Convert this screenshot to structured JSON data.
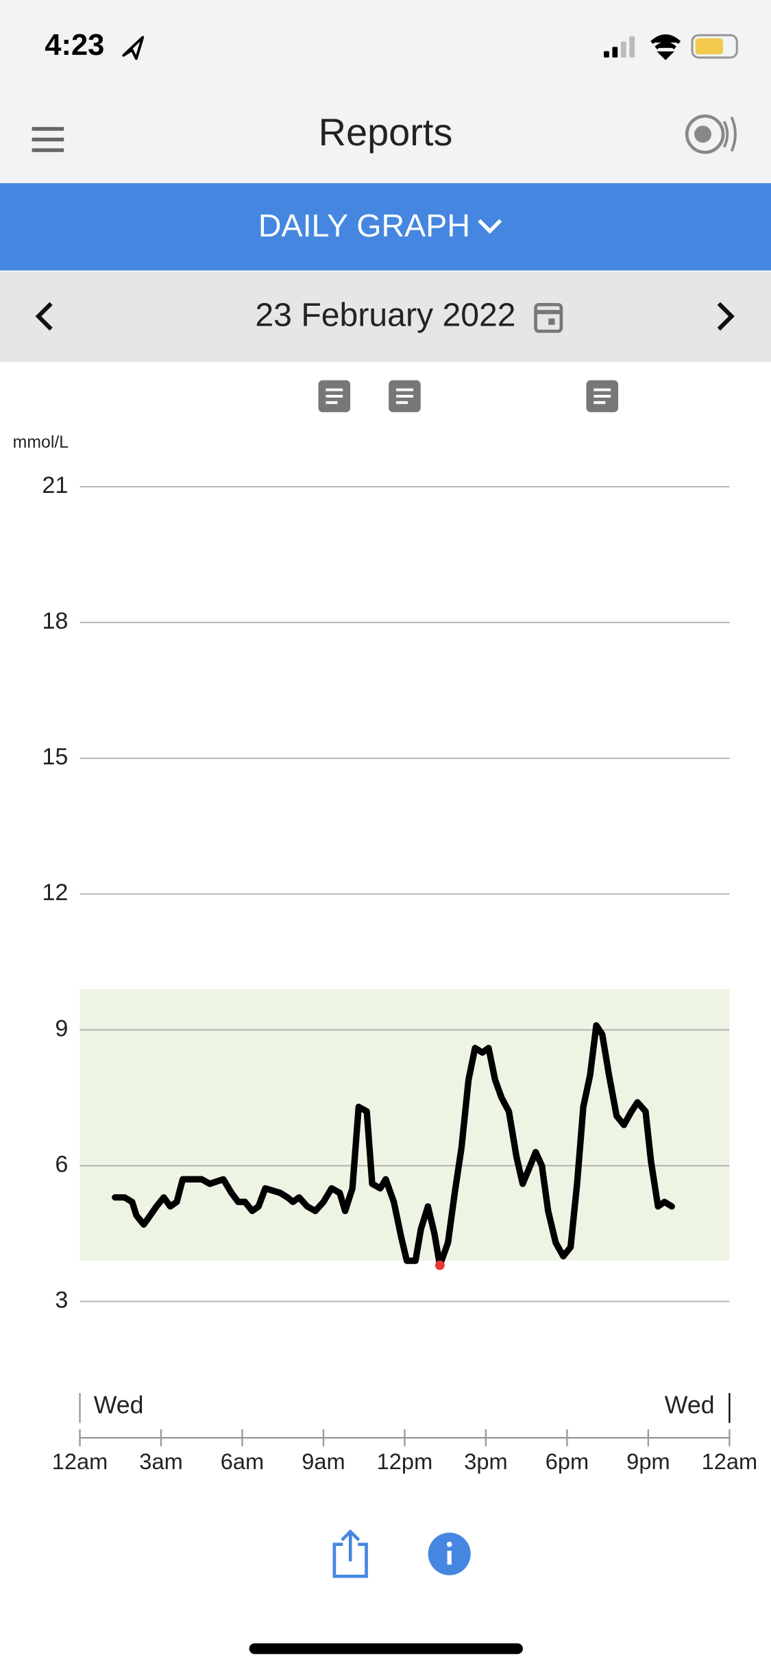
{
  "status": {
    "time": "4:23"
  },
  "header": {
    "title": "Reports"
  },
  "tab": {
    "label": "DAILY GRAPH"
  },
  "date_bar": {
    "date": "23 February 2022"
  },
  "chart_data": {
    "type": "line",
    "y_label": "mmol/L",
    "day_labels": [
      "Wed",
      "Wed"
    ],
    "xlim": [
      0,
      24
    ],
    "xticks": [
      {
        "value": 0,
        "label": "12am"
      },
      {
        "value": 3,
        "label": "3am"
      },
      {
        "value": 6,
        "label": "6am"
      },
      {
        "value": 9,
        "label": "9am"
      },
      {
        "value": 12,
        "label": "12pm"
      },
      {
        "value": 15,
        "label": "3pm"
      },
      {
        "value": 18,
        "label": "6pm"
      },
      {
        "value": 21,
        "label": "9pm"
      },
      {
        "value": 24,
        "label": "12am"
      }
    ],
    "ylim": [
      3,
      21
    ],
    "yticks": [
      3,
      6,
      9,
      12,
      15,
      18,
      21
    ],
    "grid": true,
    "target_range": [
      3.9,
      9.9
    ],
    "target_color": "#edf4e4",
    "color": "#000000",
    "low_color": "#e53935",
    "notes_x": [
      9.4,
      12.0,
      19.3
    ],
    "x": [
      1.3,
      1.65,
      1.93,
      2.09,
      2.36,
      2.6,
      2.83,
      3.1,
      3.34,
      3.58,
      3.8,
      4.5,
      4.8,
      5.3,
      5.6,
      5.85,
      6.1,
      6.37,
      6.6,
      6.85,
      7.4,
      7.67,
      7.87,
      8.1,
      8.4,
      8.7,
      9.0,
      9.3,
      9.6,
      9.8,
      10.07,
      10.3,
      10.6,
      10.8,
      11.1,
      11.3,
      11.6,
      11.88,
      12.08,
      12.4,
      12.6,
      12.86,
      13.1,
      13.3,
      13.6,
      13.85,
      14.1,
      14.36,
      14.6,
      14.87,
      15.1,
      15.34,
      15.58,
      15.85,
      16.13,
      16.36,
      16.64,
      16.84,
      17.07,
      17.3,
      17.58,
      17.86,
      18.13,
      18.37,
      18.6,
      18.85,
      19.08,
      19.3,
      19.55,
      19.83,
      20.1,
      20.38,
      20.6,
      20.9,
      21.1,
      21.36,
      21.6,
      21.87
    ],
    "values": [
      5.3,
      5.3,
      5.2,
      4.9,
      4.7,
      4.9,
      5.1,
      5.3,
      5.1,
      5.2,
      5.7,
      5.7,
      5.6,
      5.7,
      5.4,
      5.2,
      5.2,
      5.0,
      5.1,
      5.5,
      5.4,
      5.3,
      5.2,
      5.3,
      5.1,
      5.0,
      5.2,
      5.5,
      5.4,
      5.0,
      5.5,
      7.3,
      7.2,
      5.6,
      5.5,
      5.7,
      5.2,
      4.4,
      3.9,
      3.9,
      4.6,
      5.1,
      4.5,
      3.8,
      4.3,
      5.4,
      6.4,
      7.9,
      8.6,
      8.5,
      8.6,
      7.9,
      7.5,
      7.2,
      6.2,
      5.6,
      6.0,
      6.3,
      6.0,
      5.0,
      4.3,
      4.0,
      4.2,
      5.6,
      7.3,
      8.0,
      9.1,
      8.9,
      8.0,
      7.1,
      6.9,
      7.2,
      7.4,
      7.2,
      6.1,
      5.1,
      5.2,
      5.1
    ]
  }
}
